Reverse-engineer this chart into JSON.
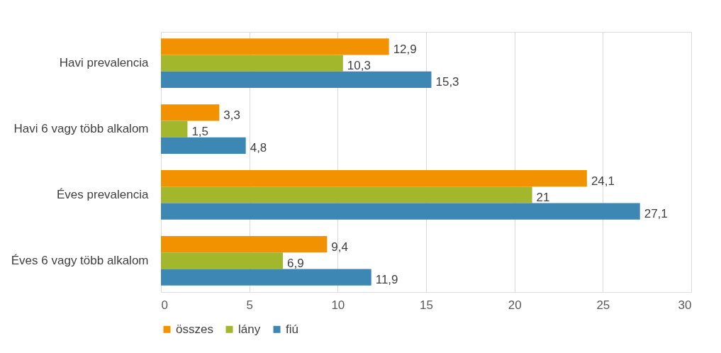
{
  "chart_data": {
    "type": "bar",
    "orientation": "horizontal",
    "categories": [
      "Havi prevalencia",
      "Havi 6 vagy több alkalom",
      "Éves prevalencia",
      "Éves 6 vagy több alkalom"
    ],
    "series": [
      {
        "name": "összes",
        "color": "#f39200",
        "values": [
          12.9,
          3.3,
          24.1,
          9.4
        ],
        "value_labels": [
          "12,9",
          "3,3",
          "24,1",
          "9,4"
        ]
      },
      {
        "name": "lány",
        "color": "#a2b72c",
        "values": [
          10.3,
          1.5,
          21,
          6.9
        ],
        "value_labels": [
          "10,3",
          "1,5",
          "21",
          "6,9"
        ]
      },
      {
        "name": "fiú",
        "color": "#3d87b5",
        "values": [
          15.3,
          4.8,
          27.1,
          11.9
        ],
        "value_labels": [
          "15,3",
          "4,8",
          "27,1",
          "11,9"
        ]
      }
    ],
    "xlim": [
      0,
      30
    ],
    "xticks": [
      0,
      5,
      10,
      15,
      20,
      25,
      30
    ],
    "grid": "x",
    "legend": "bottom"
  }
}
